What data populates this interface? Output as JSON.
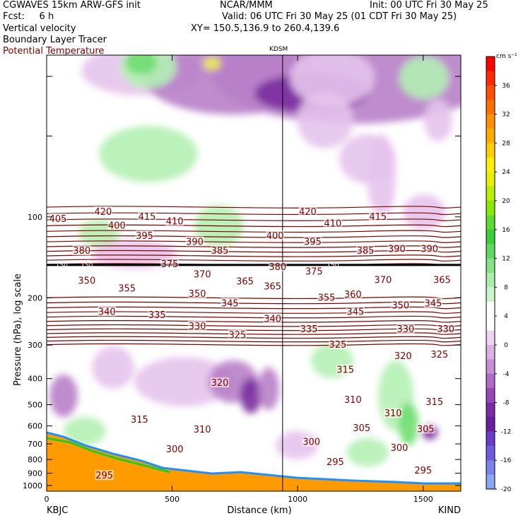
{
  "header": {
    "line1_left": "CGWAVES 15km ARW-GFS init",
    "line1_center": "NCAR/MMM",
    "line1_right": "Init: 00 UTC Fri 30 May 25",
    "line2_left": "Fcst:     6 h",
    "line2_right": "Valid: 06 UTC Fri 30 May 25 (01 CDT Fri 30 May 25)",
    "line3_left": "Vertical velocity",
    "line3_center": "XY= 150.5,136.9 to 260.4,139.6",
    "line4_left": "Boundary Layer Tracer",
    "line5_left": "Potential Temperature",
    "station_marker": "KDSM"
  },
  "colors": {
    "theta": "#800000",
    "trop": "#000000",
    "terrain_orange": "#ff9a00",
    "up_light": "#b4f0b4",
    "up_mid": "#6ede6e",
    "down_light": "#e6c3ec",
    "down_mid": "#b880c8",
    "down_dark": "#7a2d9e"
  },
  "chart_data": {
    "type": "cross-section",
    "xlabel": "Distance (km)",
    "ylabel": "Pressure (hPa), log scale",
    "xlim": [
      0,
      1650
    ],
    "ylim_hpa": [
      1050,
      25
    ],
    "y_scale": "log",
    "x_ticks": [
      "0",
      "500",
      "1000",
      "1500"
    ],
    "x_tick_values": [
      0,
      500,
      1000,
      1500
    ],
    "y_ticks": [
      "100",
      "200",
      "300",
      "400",
      "500",
      "600",
      "700",
      "800",
      "900",
      "1000"
    ],
    "y_tick_values": [
      100,
      200,
      300,
      400,
      500,
      600,
      700,
      800,
      900,
      1000
    ],
    "left_endpoint": "KBJC",
    "right_endpoint": "KIND",
    "marker_x_km": 940,
    "colorbar": {
      "unit": "cm s⁻¹",
      "labels": [
        "36",
        "32",
        "28",
        "24",
        "20",
        "16",
        "12",
        "8",
        "4",
        "0",
        "-4",
        "-8",
        "-12",
        "-16",
        "-20"
      ],
      "label_values": [
        36,
        32,
        28,
        24,
        20,
        16,
        12,
        8,
        4,
        0,
        -4,
        -8,
        -12,
        -16,
        -20
      ],
      "colors": [
        "#ff0000",
        "#ff2a00",
        "#ff4f00",
        "#ff7000",
        "#ff9000",
        "#ffab00",
        "#ffd000",
        "#fff000",
        "#e6f000",
        "#b8ee00",
        "#8ae800",
        "#5bdc32",
        "#3ccc3c",
        "#62d862",
        "#86e286",
        "#aaeeaa",
        "#caf5ca",
        "#ffffff",
        "#ffffff",
        "#eed4f1",
        "#dcb2e4",
        "#c78ed6",
        "#b06ac6",
        "#9648b6",
        "#7c2da6",
        "#6a1f9c",
        "#6a3cc8",
        "#6e5cdc",
        "#7a82ec",
        "#8ca6f5"
      ]
    },
    "theta_labels": [
      {
        "v": "420",
        "x": 225,
        "p": 96
      },
      {
        "v": "415",
        "x": 400,
        "p": 100
      },
      {
        "v": "415",
        "x": 1320,
        "p": 100
      },
      {
        "v": "410",
        "x": 510,
        "p": 104
      },
      {
        "v": "410",
        "x": 1140,
        "p": 106
      },
      {
        "v": "420",
        "x": 1040,
        "p": 96
      },
      {
        "v": "405",
        "x": 45,
        "p": 102
      },
      {
        "v": "400",
        "x": 280,
        "p": 108
      },
      {
        "v": "400",
        "x": 910,
        "p": 118
      },
      {
        "v": "395",
        "x": 390,
        "p": 118
      },
      {
        "v": "395",
        "x": 1060,
        "p": 124
      },
      {
        "v": "390",
        "x": 590,
        "p": 124
      },
      {
        "v": "390",
        "x": 1395,
        "p": 132
      },
      {
        "v": "390",
        "x": 1525,
        "p": 132
      },
      {
        "v": "385",
        "x": 690,
        "p": 134
      },
      {
        "v": "385",
        "x": 1270,
        "p": 134
      },
      {
        "v": "380",
        "x": 140,
        "p": 134
      },
      {
        "v": "380",
        "x": 920,
        "p": 154
      },
      {
        "v": "375",
        "x": 490,
        "p": 150
      },
      {
        "v": "375",
        "x": 1065,
        "p": 160
      },
      {
        "v": "370",
        "x": 620,
        "p": 164
      },
      {
        "v": "370",
        "x": 1340,
        "p": 172
      },
      {
        "v": "365",
        "x": 790,
        "p": 174
      },
      {
        "v": "365",
        "x": 900,
        "p": 182
      },
      {
        "v": "365",
        "x": 1575,
        "p": 172
      },
      {
        "v": "360",
        "x": 1220,
        "p": 195
      },
      {
        "v": "355",
        "x": 320,
        "p": 185
      },
      {
        "v": "355",
        "x": 1115,
        "p": 200
      },
      {
        "v": "350",
        "x": 160,
        "p": 173
      },
      {
        "v": "350",
        "x": 600,
        "p": 194
      },
      {
        "v": "350",
        "x": 1410,
        "p": 214
      },
      {
        "v": "345",
        "x": 730,
        "p": 210
      },
      {
        "v": "345",
        "x": 1230,
        "p": 226
      },
      {
        "v": "345",
        "x": 1540,
        "p": 210
      },
      {
        "v": "340",
        "x": 240,
        "p": 226
      },
      {
        "v": "340",
        "x": 900,
        "p": 240
      },
      {
        "v": "335",
        "x": 440,
        "p": 232
      },
      {
        "v": "335",
        "x": 1045,
        "p": 262
      },
      {
        "v": "330",
        "x": 600,
        "p": 256
      },
      {
        "v": "330",
        "x": 1430,
        "p": 262
      },
      {
        "v": "330",
        "x": 1590,
        "p": 262
      },
      {
        "v": "325",
        "x": 760,
        "p": 276
      },
      {
        "v": "325",
        "x": 1160,
        "p": 300
      },
      {
        "v": "325",
        "x": 1565,
        "p": 326
      },
      {
        "v": "320",
        "x": 690,
        "p": 416
      },
      {
        "v": "320",
        "x": 1420,
        "p": 330
      },
      {
        "v": "315",
        "x": 370,
        "p": 570
      },
      {
        "v": "315",
        "x": 1190,
        "p": 372
      },
      {
        "v": "315",
        "x": 1545,
        "p": 490
      },
      {
        "v": "310",
        "x": 620,
        "p": 620
      },
      {
        "v": "310",
        "x": 1220,
        "p": 480
      },
      {
        "v": "310",
        "x": 1380,
        "p": 540
      },
      {
        "v": "305",
        "x": 1255,
        "p": 612
      },
      {
        "v": "305",
        "x": 1510,
        "p": 618
      },
      {
        "v": "300",
        "x": 510,
        "p": 735
      },
      {
        "v": "300",
        "x": 1055,
        "p": 690
      },
      {
        "v": "300",
        "x": 1405,
        "p": 725
      },
      {
        "v": "295",
        "x": 230,
        "p": 920
      },
      {
        "v": "295",
        "x": 1150,
        "p": 820
      },
      {
        "v": "295",
        "x": 1500,
        "p": 880
      }
    ],
    "trop_labels": [
      {
        "v": "150",
        "x": 60,
        "p": 151
      },
      {
        "v": "150",
        "x": 160,
        "p": 151
      },
      {
        "v": "150",
        "x": 1140,
        "p": 151
      }
    ]
  }
}
